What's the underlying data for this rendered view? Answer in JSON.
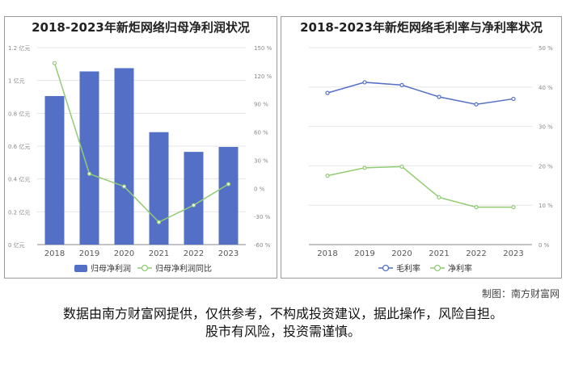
{
  "charts": [
    {
      "title": "2018-2023年新炬网络归母净利润状况",
      "chart_data": {
        "type": "bar",
        "categories": [
          "2018",
          "2019",
          "2020",
          "2021",
          "2022",
          "2023"
        ],
        "series": [
          {
            "name": "归母净利润",
            "kind": "bar",
            "axis": "left",
            "color": "#5470c6",
            "values": [
              0.905,
              1.055,
              1.075,
              0.685,
              0.565,
              0.595
            ]
          },
          {
            "name": "归母净利润同比",
            "kind": "line",
            "axis": "right",
            "color": "#91cc75",
            "values": [
              133.5,
              15.5,
              2.0,
              -36.0,
              -18.0,
              4.5
            ]
          }
        ],
        "yleft": {
          "ticks": [
            "0 亿元",
            "0.2 亿元",
            "0.4 亿元",
            "0.6 亿元",
            "0.8 亿元",
            "1 亿元",
            "1.2 亿元"
          ],
          "min": 0,
          "max": 1.2
        },
        "yright": {
          "ticks": [
            "-60 %",
            "-30 %",
            "0 %",
            "30 %",
            "60 %",
            "90 %",
            "120 %",
            "150 %"
          ],
          "min": -60,
          "max": 150
        },
        "legend_position": "bottom"
      }
    },
    {
      "title": "2018-2023年新炬网络毛利率与净利率状况",
      "chart_data": {
        "type": "line",
        "categories": [
          "2018",
          "2019",
          "2020",
          "2021",
          "2022",
          "2023"
        ],
        "series": [
          {
            "name": "毛利率",
            "color": "#5470c6",
            "values": [
              38.5,
              41.2,
              40.5,
              37.5,
              35.6,
              37.0
            ]
          },
          {
            "name": "净利率",
            "color": "#91cc75",
            "values": [
              17.5,
              19.5,
              19.8,
              12.0,
              9.5,
              9.5
            ]
          }
        ],
        "yright": {
          "ticks": [
            "0 %",
            "10 %",
            "20 %",
            "30 %",
            "40 %",
            "50 %"
          ],
          "min": 0,
          "max": 50
        },
        "legend_position": "bottom"
      }
    }
  ],
  "credit": "制图：南方财富网",
  "disclaimer_lines": [
    "数据由南方财富网提供，仅供参考，不构成投资建议，据此操作，风险自担。",
    "股市有风险，投资需谨慎。"
  ]
}
